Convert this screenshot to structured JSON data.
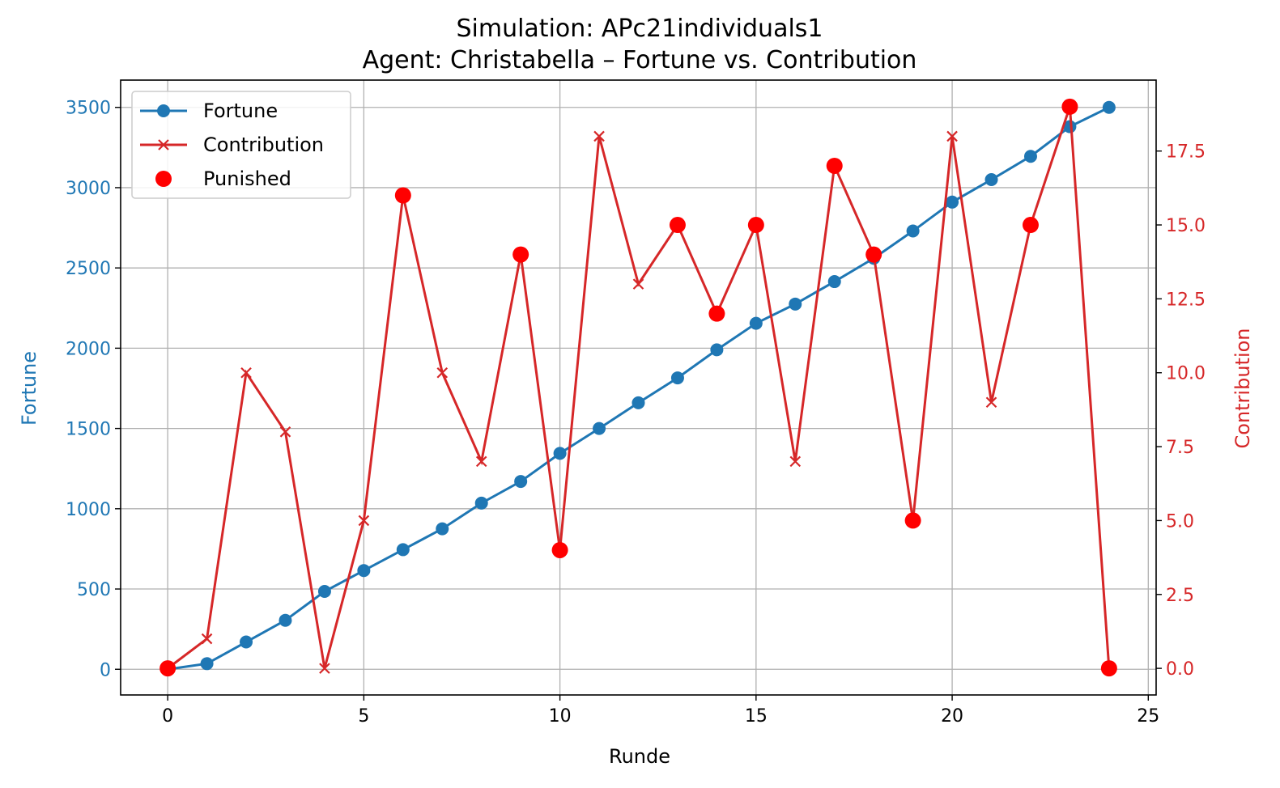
{
  "colors": {
    "fortune": "#1f77b4",
    "contribution": "#d62728",
    "punished": "#ff0000",
    "grid": "#b0b0b0",
    "axis": "#000000"
  },
  "chart_data": {
    "type": "line",
    "title_line1": "Simulation: APc21individuals1",
    "title_line2": "Agent: Christabella – Fortune vs. Contribution",
    "xlabel": "Runde",
    "ylabel_left": "Fortune",
    "ylabel_right": "Contribution",
    "xlim": [
      -1.2,
      25.2
    ],
    "ylim_left": [
      -160,
      3670
    ],
    "ylim_right": [
      -0.9,
      19.9
    ],
    "xticks": [
      0,
      5,
      10,
      15,
      20,
      25
    ],
    "yticks_left": [
      0,
      500,
      1000,
      1500,
      2000,
      2500,
      3000,
      3500
    ],
    "yticks_right": [
      "0.0",
      "2.5",
      "5.0",
      "7.5",
      "10.0",
      "12.5",
      "15.0",
      "17.5"
    ],
    "grid": true,
    "legend_position": "upper-left",
    "legend": {
      "fortune": "Fortune",
      "contribution": "Contribution",
      "punished": "Punished"
    },
    "x": [
      0,
      1,
      2,
      3,
      4,
      5,
      6,
      7,
      8,
      9,
      10,
      11,
      12,
      13,
      14,
      15,
      16,
      17,
      18,
      19,
      20,
      21,
      22,
      23,
      24
    ],
    "fortune": [
      0,
      35,
      170,
      305,
      485,
      615,
      745,
      875,
      1035,
      1170,
      1345,
      1500,
      1660,
      1815,
      1990,
      2155,
      2275,
      2415,
      2560,
      2730,
      2910,
      3050,
      3195,
      3380,
      3500
    ],
    "contribution": [
      0,
      1,
      10,
      8,
      0,
      5,
      16,
      10,
      7,
      14,
      4,
      18,
      13,
      15,
      12,
      15,
      7,
      17,
      14,
      5,
      18,
      9,
      15,
      19,
      0
    ],
    "punished_rounds": [
      0,
      6,
      9,
      10,
      13,
      14,
      15,
      17,
      18,
      19,
      22,
      23,
      24
    ]
  }
}
